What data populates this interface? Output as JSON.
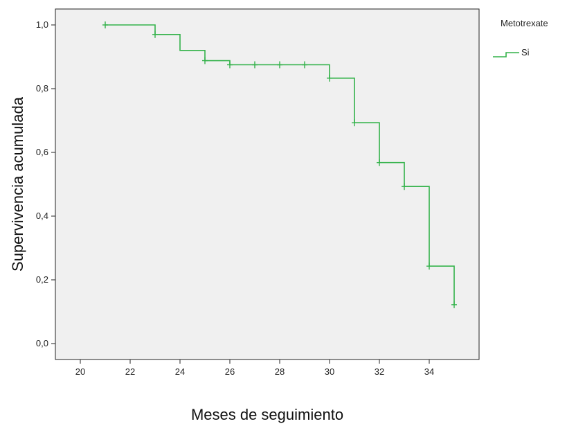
{
  "chart_data": {
    "type": "line",
    "subtype": "kaplan-meier-step",
    "title": "",
    "xlabel": "Meses de seguimiento",
    "ylabel": "Supervivencia acumulada",
    "xlim": [
      19,
      36
    ],
    "ylim": [
      -0.05,
      1.05
    ],
    "x_ticks": [
      20,
      22,
      24,
      26,
      28,
      30,
      32,
      34
    ],
    "x_tick_labels": [
      "20",
      "22",
      "24",
      "26",
      "28",
      "30",
      "32",
      "34"
    ],
    "y_ticks": [
      0.0,
      0.2,
      0.4,
      0.6,
      0.8,
      1.0
    ],
    "y_tick_labels": [
      "0,0",
      "0,2",
      "0,4",
      "0,6",
      "0,8",
      "1,0"
    ],
    "grid": false,
    "plot_background": "#f0f0f0",
    "legend": {
      "title": "Metotrexate",
      "placement": "right",
      "entries": [
        {
          "name": "Si",
          "color": "#33b24a"
        }
      ]
    },
    "series": [
      {
        "name": "Si",
        "color": "#33b24a",
        "steps": [
          {
            "x": 21,
            "y": 1.0
          },
          {
            "x": 23,
            "y": 0.97
          },
          {
            "x": 24,
            "y": 0.92
          },
          {
            "x": 25,
            "y": 0.888
          },
          {
            "x": 26,
            "y": 0.875
          },
          {
            "x": 30,
            "y": 0.833
          },
          {
            "x": 31,
            "y": 0.693
          },
          {
            "x": 32,
            "y": 0.568
          },
          {
            "x": 33,
            "y": 0.493
          },
          {
            "x": 34,
            "y": 0.243
          },
          {
            "x": 35,
            "y": 0.122
          }
        ],
        "censored": [
          {
            "x": 21,
            "y": 1.0
          },
          {
            "x": 23,
            "y": 0.97
          },
          {
            "x": 25,
            "y": 0.888
          },
          {
            "x": 26,
            "y": 0.875
          },
          {
            "x": 27,
            "y": 0.875
          },
          {
            "x": 28,
            "y": 0.875
          },
          {
            "x": 29,
            "y": 0.875
          },
          {
            "x": 30,
            "y": 0.833
          },
          {
            "x": 31,
            "y": 0.693
          },
          {
            "x": 32,
            "y": 0.568
          },
          {
            "x": 33,
            "y": 0.493
          },
          {
            "x": 34,
            "y": 0.243
          },
          {
            "x": 35,
            "y": 0.122
          }
        ]
      }
    ]
  }
}
